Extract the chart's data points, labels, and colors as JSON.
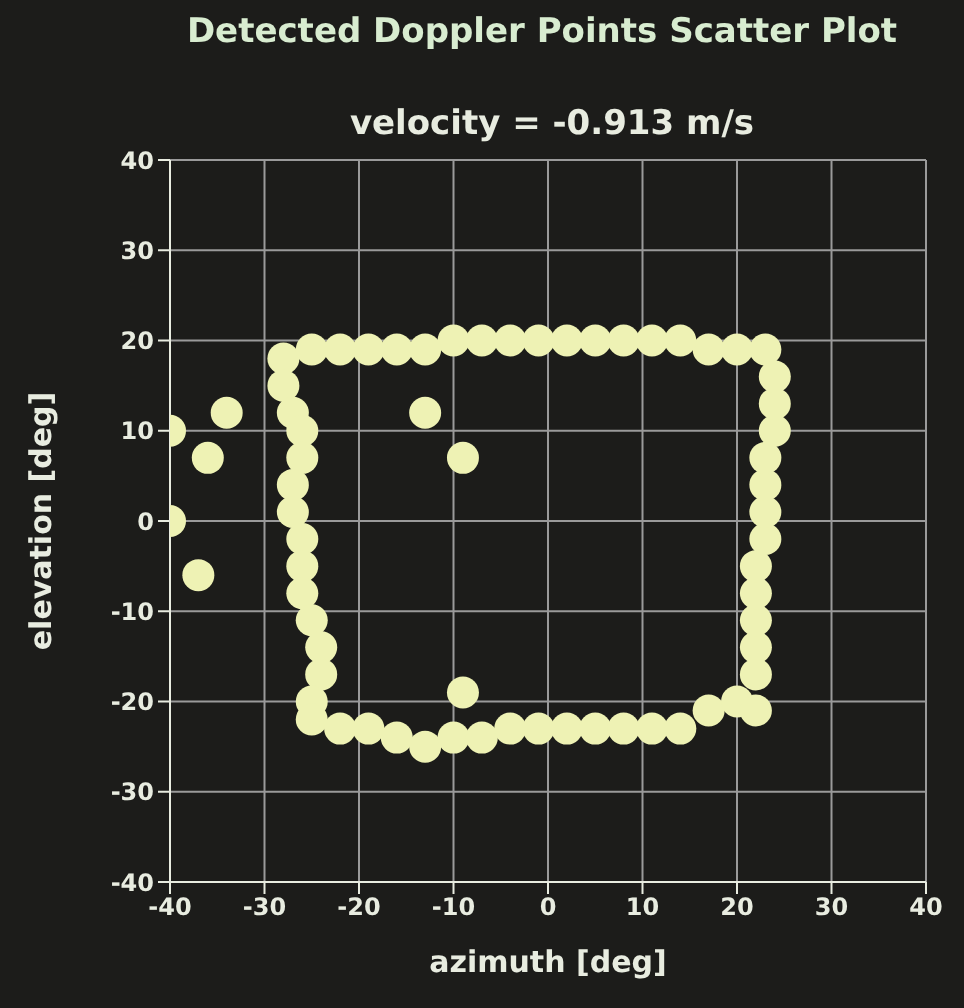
{
  "chart_data": {
    "type": "scatter",
    "title": "Detected Doppler Points Scatter Plot",
    "subtitle": "velocity = -0.913 m/s",
    "xlabel": "azimuth [deg]",
    "ylabel": "elevation [deg]",
    "x": [
      -28,
      -28,
      -27,
      -26,
      -26,
      -27,
      -27,
      -26,
      -26,
      -26,
      -25,
      -24,
      -24,
      -25,
      -25,
      -22,
      -19,
      -16,
      -13,
      -10,
      -7,
      -4,
      -1,
      2,
      5,
      8,
      11,
      14,
      17,
      20,
      22,
      22,
      22,
      22,
      22,
      22,
      23,
      23,
      23,
      23,
      24,
      24,
      24,
      23,
      20,
      17,
      14,
      11,
      8,
      5,
      2,
      -1,
      -4,
      -7,
      -10,
      -13,
      -16,
      -19,
      -22,
      -25,
      -40,
      -34,
      -36,
      -13,
      -9,
      -37,
      -9,
      -40
    ],
    "values": [
      18,
      15,
      12,
      10,
      7,
      4,
      1,
      -2,
      -5,
      -8,
      -11,
      -14,
      -17,
      -20,
      -22,
      -23,
      -23,
      -24,
      -25,
      -24,
      -24,
      -23,
      -23,
      -23,
      -23,
      -23,
      -23,
      -23,
      -21,
      -20,
      -21,
      -17,
      -14,
      -11,
      -8,
      -5,
      -2,
      1,
      4,
      7,
      10,
      13,
      16,
      19,
      19,
      19,
      20,
      20,
      20,
      20,
      20,
      20,
      20,
      20,
      20,
      19,
      19,
      19,
      19,
      19,
      10,
      12,
      7,
      12,
      7,
      -6,
      -19,
      0
    ],
    "color": "#eef2b4",
    "marker": "circle",
    "xlim": [
      -40,
      40
    ],
    "ylim": [
      -40,
      40
    ],
    "xticks": [
      -40,
      -30,
      -20,
      -10,
      0,
      10,
      20,
      30,
      40
    ],
    "yticks": [
      -40,
      -30,
      -20,
      -10,
      0,
      10,
      20,
      30,
      40
    ],
    "grid": true,
    "legend": false
  }
}
